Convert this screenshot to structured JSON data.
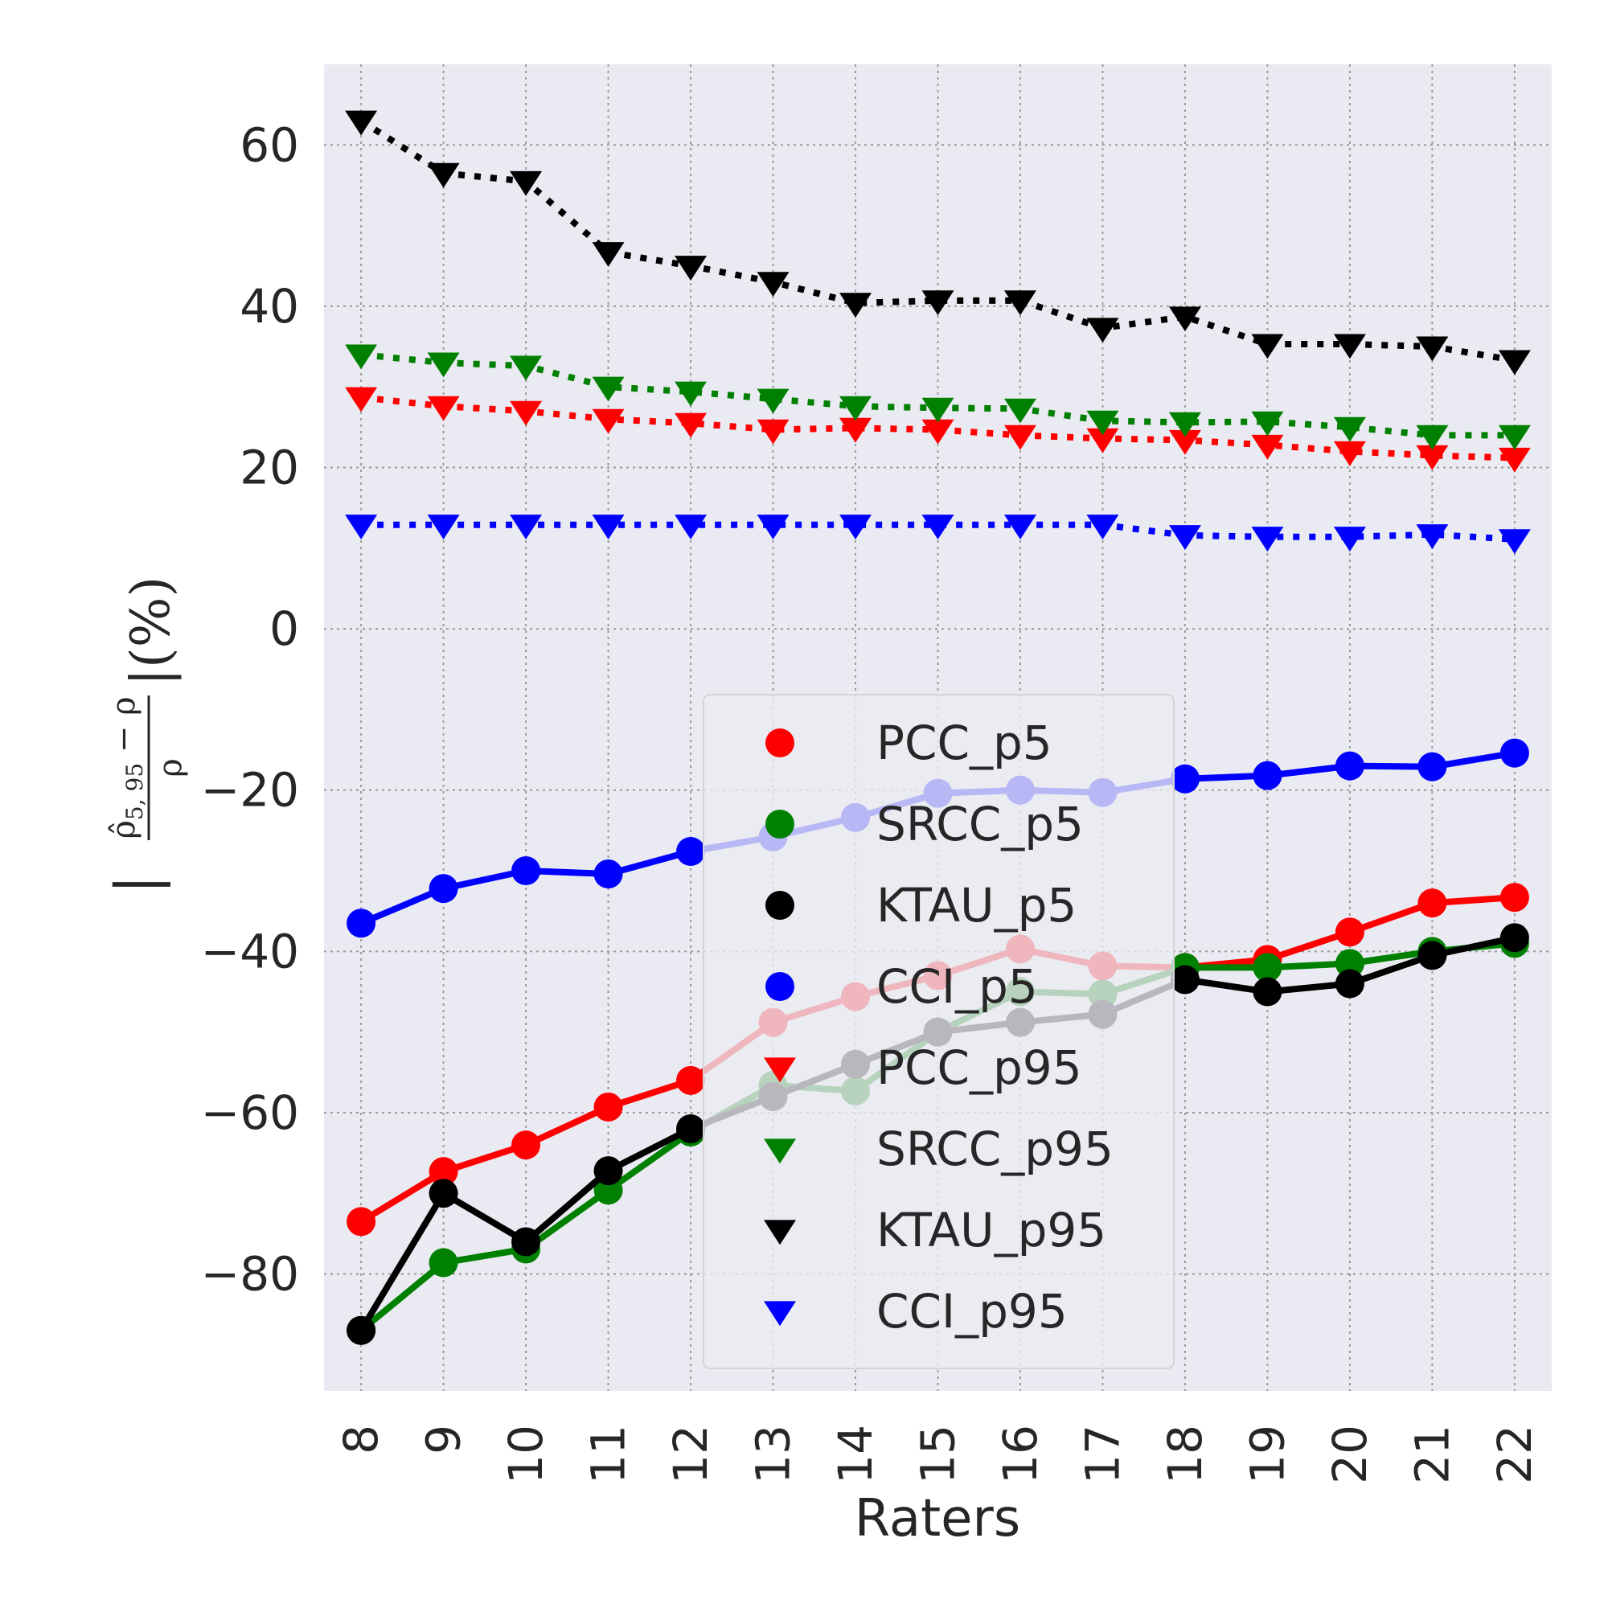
{
  "chart_data": {
    "type": "line",
    "xlabel": "Raters",
    "ylabel": {
      "prefix": "|",
      "numerator": "ρ̂",
      "numerator_subscript": "5, 95",
      "numerator_rest": " − ρ",
      "denominator": "ρ",
      "suffix": "|(%)"
    },
    "x": [
      8,
      9,
      10,
      11,
      12,
      13,
      14,
      15,
      16,
      17,
      18,
      19,
      20,
      21,
      22
    ],
    "xlim": [
      7.55,
      22.45
    ],
    "ylim": [
      -94.5,
      70
    ],
    "yticks": [
      60,
      40,
      20,
      0,
      -20,
      -40,
      -60,
      -80
    ],
    "ytick_labels": [
      "60",
      "40",
      "20",
      "0",
      "−20",
      "−40",
      "−60",
      "−80"
    ],
    "grid": true,
    "legend_position": "lower-center",
    "series": [
      {
        "name": "PCC_p5",
        "color": "#ff0000",
        "marker": "circle",
        "linestyle": "solid",
        "values": [
          -73.5,
          -67.3,
          -64.0,
          -59.3,
          -56.0,
          -48.8,
          -45.6,
          -43.0,
          -39.7,
          -41.8,
          -42.0,
          -41.0,
          -37.6,
          -34.0,
          -33.3
        ]
      },
      {
        "name": "SRCC_p5",
        "color": "#008000",
        "marker": "circle",
        "linestyle": "solid",
        "values": [
          -87.0,
          -78.6,
          -76.9,
          -69.6,
          -62.4,
          -56.6,
          -57.3,
          -50.0,
          -45.0,
          -45.3,
          -42.0,
          -42.0,
          -41.5,
          -40.0,
          -39.0
        ]
      },
      {
        "name": "KTAU_p5",
        "color": "#000000",
        "marker": "circle",
        "linestyle": "solid",
        "values": [
          -87.0,
          -70.0,
          -76.0,
          -67.2,
          -62.0,
          -58.0,
          -54.0,
          -50.0,
          -48.8,
          -47.8,
          -43.5,
          -45.0,
          -44.0,
          -40.5,
          -38.3
        ]
      },
      {
        "name": "CCI_p5",
        "color": "#0000ff",
        "marker": "circle",
        "linestyle": "solid",
        "values": [
          -36.5,
          -32.2,
          -30.0,
          -30.4,
          -27.6,
          -25.8,
          -23.4,
          -20.4,
          -20.0,
          -20.3,
          -18.6,
          -18.2,
          -17.0,
          -17.1,
          -15.4
        ]
      },
      {
        "name": "PCC_p95",
        "color": "#ff0000",
        "marker": "triangle-down",
        "linestyle": "dotted",
        "values": [
          28.7,
          27.6,
          27.0,
          26.0,
          25.5,
          24.7,
          24.9,
          24.7,
          24.0,
          23.6,
          23.4,
          22.8,
          22.0,
          21.5,
          21.2
        ]
      },
      {
        "name": "SRCC_p95",
        "color": "#008000",
        "marker": "triangle-down",
        "linestyle": "dotted",
        "values": [
          34.0,
          33.0,
          32.6,
          30.0,
          29.4,
          28.5,
          27.6,
          27.4,
          27.3,
          25.8,
          25.6,
          25.7,
          25.0,
          24.0,
          24.0
        ]
      },
      {
        "name": "KTAU_p95",
        "color": "#000000",
        "marker": "triangle-down",
        "linestyle": "dotted",
        "values": [
          63.0,
          56.5,
          55.5,
          46.7,
          45.0,
          43.0,
          40.4,
          40.7,
          40.7,
          37.3,
          38.7,
          35.3,
          35.3,
          35.0,
          33.3
        ]
      },
      {
        "name": "CCI_p95",
        "color": "#0000ff",
        "marker": "triangle-down",
        "linestyle": "dotted",
        "values": [
          12.9,
          12.9,
          12.9,
          12.9,
          12.9,
          12.9,
          12.9,
          12.9,
          12.9,
          12.9,
          11.6,
          11.4,
          11.4,
          11.7,
          11.1
        ]
      }
    ]
  }
}
